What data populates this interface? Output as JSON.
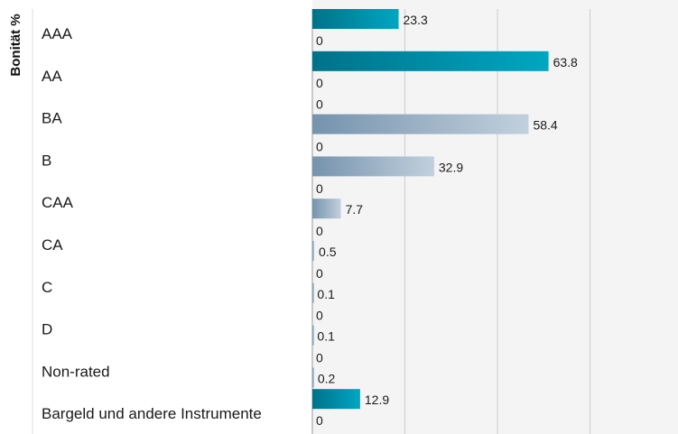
{
  "chart_data": {
    "type": "bar",
    "orientation": "horizontal",
    "ylabel": "Bonität %",
    "categories": [
      "AAA",
      "AA",
      "BA",
      "B",
      "CAA",
      "CA",
      "C",
      "D",
      "Non-rated",
      "Bargeld und andere Instrumente"
    ],
    "series": [
      {
        "values": [
          23.3,
          63.8,
          0,
          0,
          0,
          0,
          0,
          0,
          0,
          12.9
        ],
        "color": "#0098b0"
      },
      {
        "values": [
          0,
          0,
          58.4,
          32.9,
          7.7,
          0.5,
          0.1,
          0.1,
          0.2,
          0
        ],
        "color": "#9fb6cc"
      }
    ],
    "xlim": [
      0,
      100
    ],
    "grid": true
  },
  "colors": {
    "series1_dark": "#00728a",
    "series1_light": "#00a6c2",
    "series2_dark": "#7593ad",
    "series2_light": "#c2d0dd",
    "plot_bg": "#f4f4f4",
    "grid": "#cccccc"
  }
}
